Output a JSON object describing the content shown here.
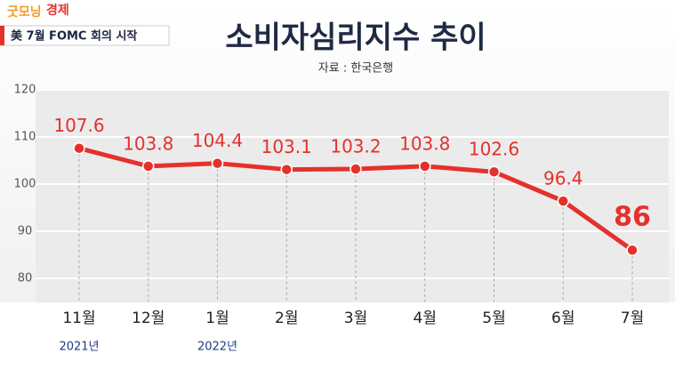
{
  "header": {
    "logo": [
      "굿모닝",
      "경제"
    ],
    "ticker": "美 7월 FOMC 회의 시작"
  },
  "chart_data": {
    "type": "line",
    "title": "소비자심리지수 추이",
    "subtitle": "자료 : 한국은행",
    "categories": [
      "11월",
      "12월",
      "1월",
      "2월",
      "3월",
      "4월",
      "5월",
      "6월",
      "7월"
    ],
    "year_labels": [
      "2021년",
      null,
      "2022년",
      null,
      null,
      null,
      null,
      null,
      null
    ],
    "values": [
      107.6,
      103.8,
      104.4,
      103.1,
      103.2,
      103.8,
      102.6,
      96.4,
      86
    ],
    "color": "#e5312b",
    "ylim": [
      75,
      120
    ],
    "yticks": [
      80,
      90,
      100,
      110,
      120
    ],
    "grid": true
  }
}
